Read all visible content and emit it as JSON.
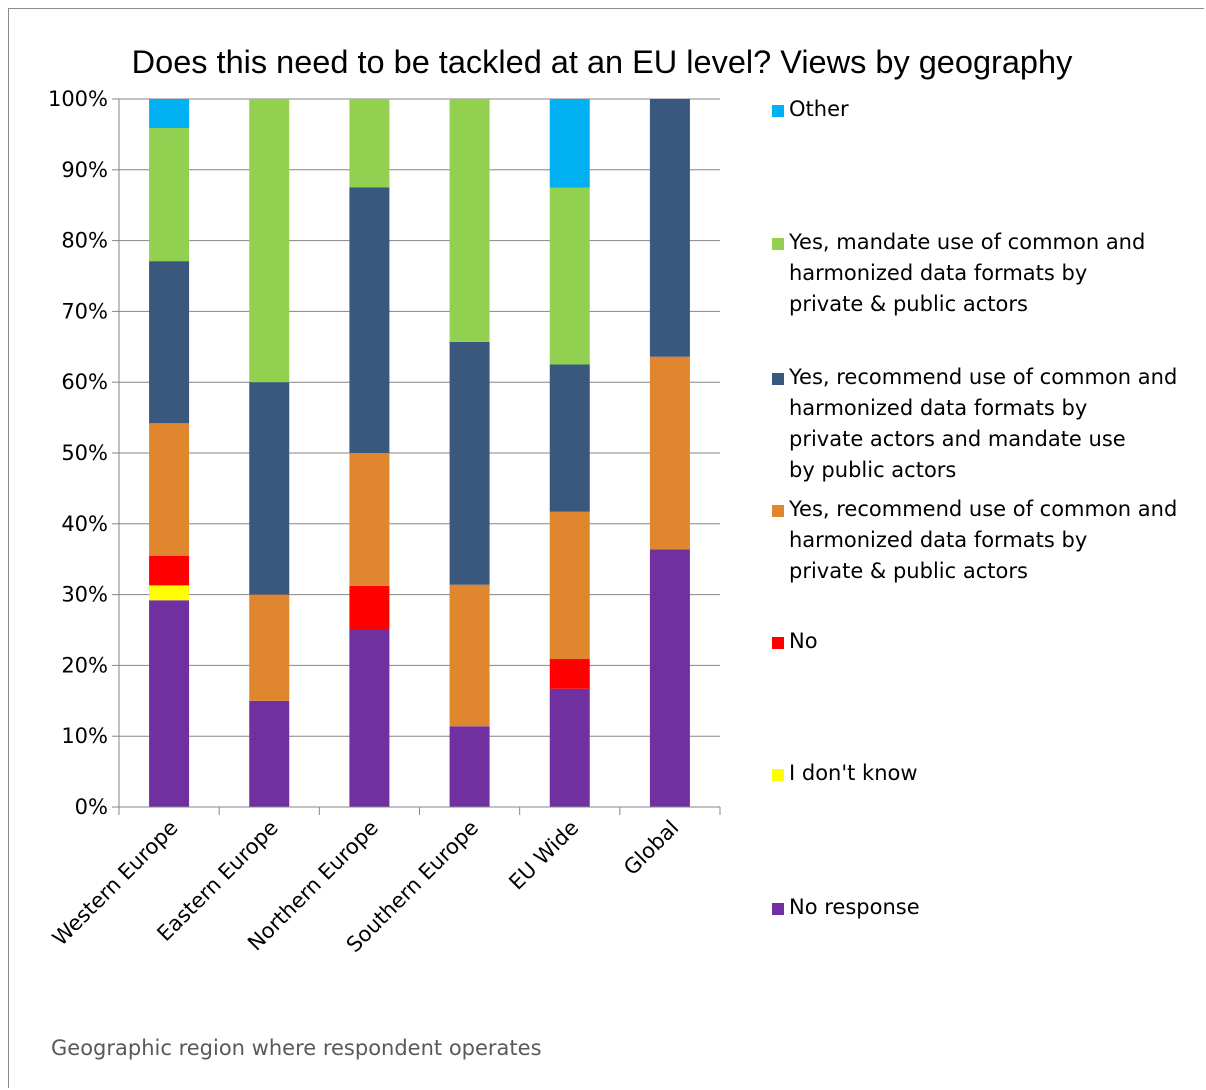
{
  "chart_data": {
    "type": "bar",
    "stacked": true,
    "title": "Does this need to be tackled at an EU level? Views by geography",
    "xlabel": "Geographic region where respondent operates",
    "ylabel": "",
    "ylim": [
      0,
      100
    ],
    "y_ticks": [
      "0%",
      "10%",
      "20%",
      "30%",
      "40%",
      "50%",
      "60%",
      "70%",
      "80%",
      "90%",
      "100%"
    ],
    "grid": true,
    "legend_position": "right",
    "categories": [
      "Western Europe",
      "Eastern Europe",
      "Northern Europe",
      "Southern Europe",
      "EU Wide",
      "Global"
    ],
    "series": [
      {
        "name": "No response",
        "color": "#7030a0",
        "values": [
          29.2,
          15.0,
          25.0,
          11.4,
          16.7,
          36.4
        ]
      },
      {
        "name": "I don't know",
        "color": "#ffff00",
        "values": [
          2.1,
          0,
          0,
          0,
          0,
          0
        ]
      },
      {
        "name": "No",
        "color": "#ff0000",
        "values": [
          4.2,
          0,
          6.25,
          0,
          4.2,
          0
        ]
      },
      {
        "name": "Yes, recommend use of common and harmonized data formats by private & public actors",
        "color": "#e0862f",
        "values": [
          18.7,
          15.0,
          18.75,
          20.0,
          20.8,
          27.2
        ]
      },
      {
        "name": "Yes, recommend use of common and harmonized data formats by private actors and mandate use by public actors",
        "color": "#3a577d",
        "values": [
          22.9,
          30.0,
          37.5,
          34.3,
          20.8,
          36.4
        ]
      },
      {
        "name": "Yes, mandate  use of common and harmonized data formats by private & public actors",
        "color": "#92d050",
        "values": [
          18.8,
          40.0,
          12.5,
          34.3,
          25.0,
          0
        ]
      },
      {
        "name": "Other",
        "color": "#00b0f0",
        "values": [
          4.1,
          0,
          0,
          0,
          12.5,
          0
        ]
      }
    ],
    "legend_order": [
      "Other",
      "Yes, mandate  use of common and harmonized data formats by private & public actors",
      "Yes, recommend use of common and harmonized data formats by private actors and mandate use by public actors",
      "Yes, recommend use of common and harmonized data formats by private & public actors",
      "No",
      "I don't know",
      "No response"
    ]
  }
}
